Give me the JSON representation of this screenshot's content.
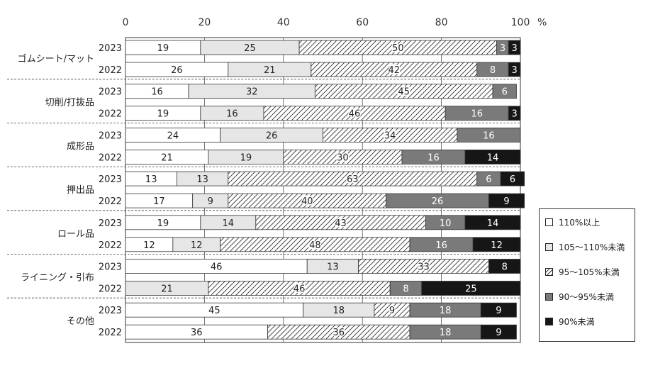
{
  "chart_data": {
    "type": "bar",
    "orientation": "horizontal",
    "stacked": true,
    "unit": "%",
    "xlim": [
      0,
      100
    ],
    "xticks": [
      "0",
      "20",
      "40",
      "60",
      "80",
      "100"
    ],
    "grid": true,
    "legend_position": "right",
    "groups": [
      "ゴムシート/マット",
      "切削/打抜品",
      "成形品",
      "押出品",
      "ロール品",
      "ライニング・引布",
      "その他"
    ],
    "years": [
      "2023",
      "2022"
    ],
    "series": [
      {
        "name": "110%以上",
        "color": "#ffffff",
        "pattern": "none"
      },
      {
        "name": "105～110%未満",
        "color": "#e6e6e6",
        "pattern": "none"
      },
      {
        "name": "95～105%未満",
        "color": "#ffffff",
        "pattern": "hatch"
      },
      {
        "name": "90～95%未満",
        "color": "#7a7a7a",
        "pattern": "none"
      },
      {
        "name": "90%未満",
        "color": "#161616",
        "pattern": "none"
      }
    ],
    "bars": [
      {
        "group": "ゴムシート/マット",
        "year": "2023",
        "values": [
          19,
          25,
          50,
          3,
          3
        ]
      },
      {
        "group": "ゴムシート/マット",
        "year": "2022",
        "values": [
          26,
          21,
          42,
          8,
          3
        ]
      },
      {
        "group": "切削/打抜品",
        "year": "2023",
        "values": [
          16,
          32,
          45,
          6,
          0
        ]
      },
      {
        "group": "切削/打抜品",
        "year": "2022",
        "values": [
          19,
          16,
          46,
          16,
          3
        ]
      },
      {
        "group": "成形品",
        "year": "2023",
        "values": [
          24,
          26,
          34,
          16,
          0
        ]
      },
      {
        "group": "成形品",
        "year": "2022",
        "values": [
          21,
          19,
          30,
          16,
          14
        ]
      },
      {
        "group": "押出品",
        "year": "2023",
        "values": [
          13,
          13,
          63,
          6,
          6
        ]
      },
      {
        "group": "押出品",
        "year": "2022",
        "values": [
          17,
          9,
          40,
          26,
          9
        ]
      },
      {
        "group": "ロール品",
        "year": "2023",
        "values": [
          19,
          14,
          43,
          10,
          14
        ]
      },
      {
        "group": "ロール品",
        "year": "2022",
        "values": [
          12,
          12,
          48,
          16,
          12
        ]
      },
      {
        "group": "ライニング・引布",
        "year": "2023",
        "values": [
          46,
          13,
          33,
          0,
          8
        ]
      },
      {
        "group": "ライニング・引布",
        "year": "2022",
        "values": [
          0,
          21,
          46,
          8,
          25
        ]
      },
      {
        "group": "その他",
        "year": "2023",
        "values": [
          45,
          18,
          9,
          18,
          9
        ]
      },
      {
        "group": "その他",
        "year": "2022",
        "values": [
          36,
          0,
          36,
          18,
          9
        ]
      }
    ]
  }
}
